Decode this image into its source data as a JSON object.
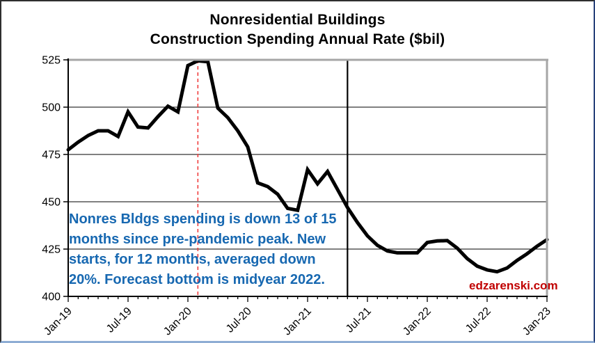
{
  "chart": {
    "title_line1": "Nonresidential Buildings",
    "title_line2": "Construction Spending Annual Rate ($bil)",
    "watermark": "edzarenski.com",
    "watermark_color": "#c00000",
    "annotation": {
      "color": "#1768b1",
      "lines": [
        "Nonres Bldgs spending is down 13 of 15",
        "months since pre-pandemic peak. New",
        "starts, for 12 months, averaged down",
        "20%. Forecast bottom is midyear 2022."
      ]
    }
  },
  "chart_data": {
    "type": "line",
    "title": "Nonresidential Buildings Construction Spending Annual Rate ($bil)",
    "xlabel": "",
    "ylabel": "",
    "grid": true,
    "legend_position": "none",
    "ylim": [
      400,
      525
    ],
    "y_ticks": [
      400,
      425,
      450,
      475,
      500,
      525
    ],
    "x_start_month": "Jan-19",
    "x_end_month": "Jan-23",
    "x_months_total": 49,
    "x_major_tick_every_months": 6,
    "x_tick_labels": [
      "Jan-19",
      "Jul-19",
      "Jan-20",
      "Jul-20",
      "Jan-21",
      "Jul-21",
      "Jan-22",
      "Jul-22",
      "Jan-23"
    ],
    "series": [
      {
        "name": "Nonresidential Buildings spending annual rate ($bil)",
        "color": "#000000",
        "values": [
          477.5,
          481.5,
          485,
          487.5,
          487.5,
          484.5,
          497.5,
          489.5,
          489,
          495,
          500.5,
          497.5,
          522,
          524.5,
          524,
          499.5,
          494.5,
          487.5,
          479,
          460,
          458,
          454,
          446.5,
          445.5,
          467,
          459.5,
          466,
          456.5,
          447,
          439,
          432,
          427,
          424,
          423,
          423,
          423,
          428.5,
          429.3,
          429.5,
          425.5,
          420,
          416,
          414,
          413,
          415,
          419,
          422.5,
          426.5,
          430
        ]
      }
    ],
    "reference_lines": [
      {
        "orientation": "vertical",
        "at_month": "Feb-20",
        "month_index": 13,
        "style": "dashed",
        "color": "#f03e3e",
        "meaning": "pre-pandemic peak"
      },
      {
        "orientation": "vertical",
        "at_month": "May-21",
        "month_index": 28,
        "style": "solid",
        "color": "#000000",
        "meaning": ""
      }
    ],
    "axis_colors": {
      "gridline": "#000000",
      "axis": "#000000",
      "plot_border_gray": "#a6a6a6"
    }
  }
}
